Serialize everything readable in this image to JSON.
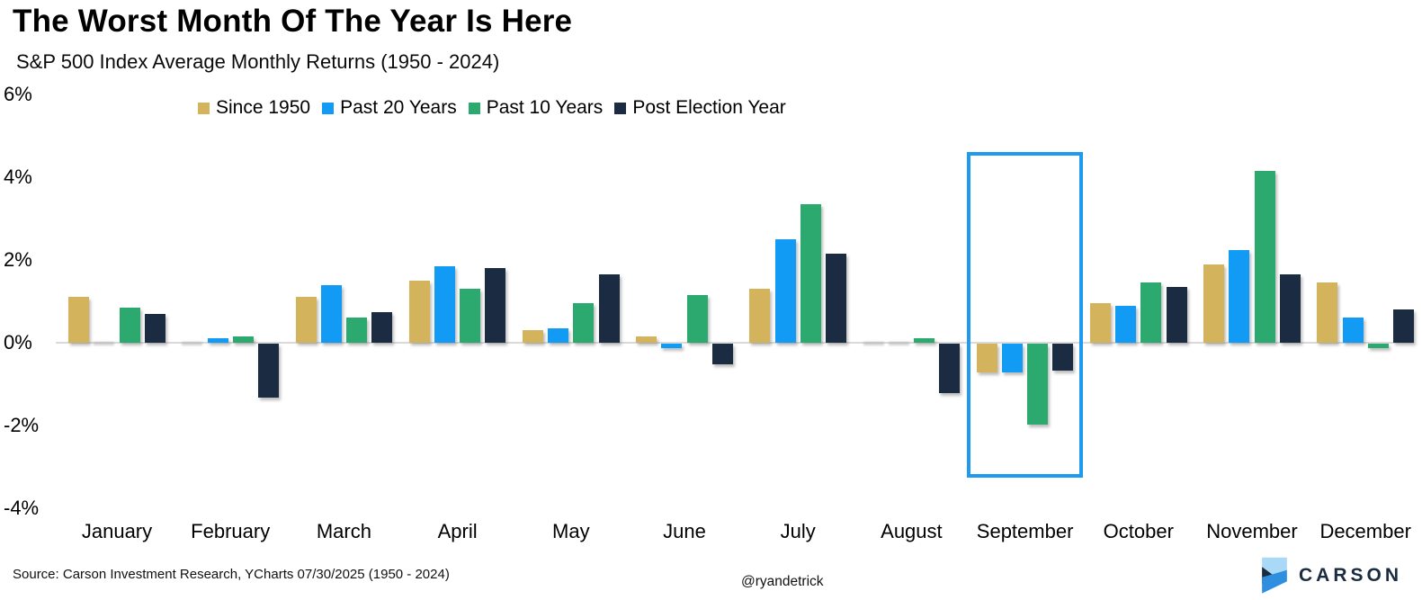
{
  "title": "The Worst Month Of The Year Is Here",
  "subtitle": "S&P 500 Index Average Monthly Returns (1950 - 2024)",
  "footer": {
    "source": "Source: Carson Investment Research, YCharts 07/30/2025 (1950 - 2024)",
    "handle": "@ryandetrick",
    "brand": "CARSON"
  },
  "colors": {
    "since_1950": "#D3B35C",
    "past_20_years": "#129BF4",
    "past_10_years": "#2BA96F",
    "post_election_year": "#1B2C42",
    "highlight_box": "#1E9AF0",
    "zero_axis": "#DADADA",
    "brand_navy": "#1B2C41",
    "brand_light_blue": "#A9D9F6",
    "brand_mid_blue": "#2E8FE0"
  },
  "chart_data": {
    "type": "bar",
    "title": "The Worst Month Of The Year Is Here",
    "subtitle": "S&P 500 Index Average Monthly Returns (1950 - 2024)",
    "categories": [
      "January",
      "February",
      "March",
      "April",
      "May",
      "June",
      "July",
      "August",
      "September",
      "October",
      "November",
      "December"
    ],
    "series": [
      {
        "name": "Since 1950",
        "color": "#D3B35C",
        "values": [
          1.1,
          0.0,
          1.1,
          1.5,
          0.3,
          0.15,
          1.3,
          0.0,
          -0.7,
          0.95,
          1.9,
          1.45
        ]
      },
      {
        "name": "Past 20 Years",
        "color": "#129BF4",
        "values": [
          0.0,
          0.1,
          1.4,
          1.85,
          0.35,
          -0.1,
          2.5,
          0.0,
          -0.7,
          0.9,
          2.25,
          0.6
        ]
      },
      {
        "name": "Past 10 Years",
        "color": "#2BA96F",
        "values": [
          0.85,
          0.15,
          0.6,
          1.3,
          0.95,
          1.15,
          3.35,
          0.1,
          -1.95,
          1.45,
          4.15,
          -0.1
        ]
      },
      {
        "name": "Post Election Year",
        "color": "#1B2C42",
        "values": [
          0.7,
          -1.3,
          0.75,
          1.8,
          1.65,
          -0.5,
          2.15,
          -1.2,
          -0.65,
          1.35,
          1.65,
          0.8
        ]
      }
    ],
    "yticks": [
      {
        "label": "6%",
        "value": 6
      },
      {
        "label": "4%",
        "value": 4
      },
      {
        "label": "2%",
        "value": 2
      },
      {
        "label": "0%",
        "value": 0
      },
      {
        "label": "-2%",
        "value": -2
      },
      {
        "label": "-4%",
        "value": -4
      }
    ],
    "ylim": [
      -4,
      6
    ],
    "xlabel": "",
    "ylabel": "",
    "grid": false,
    "legend_position": "top",
    "highlighted_category": "September"
  }
}
